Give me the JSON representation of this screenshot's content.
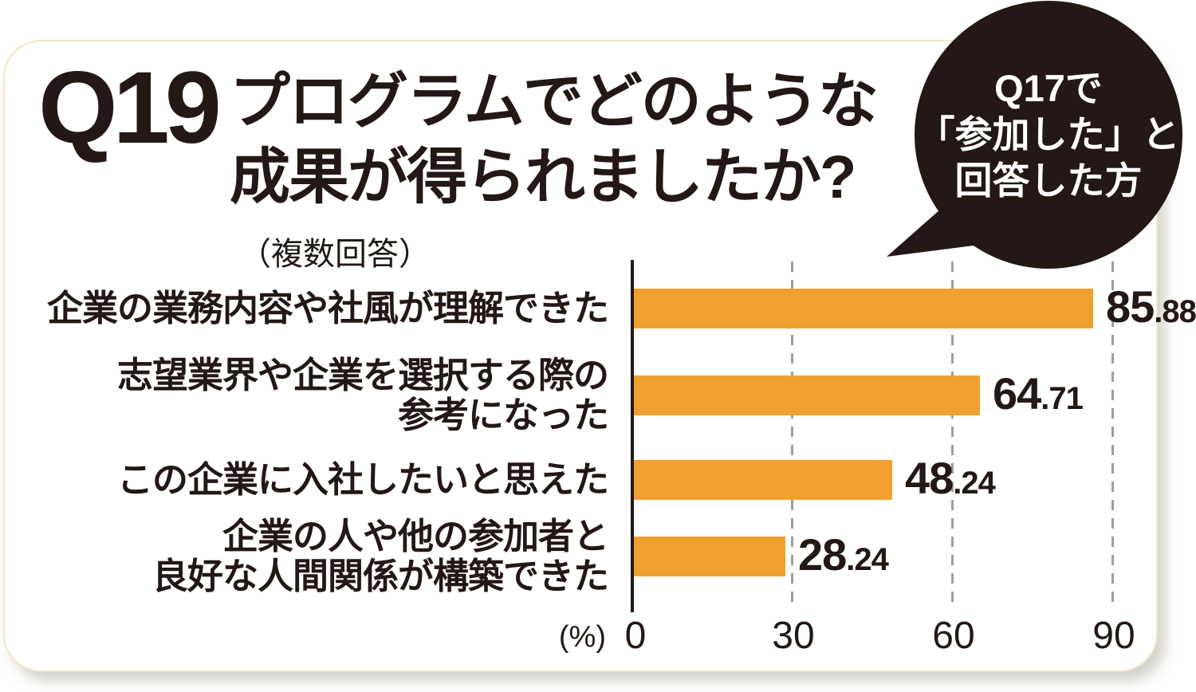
{
  "question": {
    "number": "Q19",
    "title_line1": "プログラムでどのような",
    "title_line2": "成果が得られましたか?",
    "note": "（複数回答）"
  },
  "bubble": {
    "line1": "Q17で",
    "line2": "「参加した」と",
    "line3": "回答した方",
    "background": "#231815",
    "text_color": "#ffffff"
  },
  "chart_data": {
    "type": "bar",
    "orientation": "horizontal",
    "title": "Q19 プログラムでどのような成果が得られましたか?（複数回答）",
    "annotation": "Q17で「参加した」と回答した方",
    "categories": [
      "企業の業務内容や社風が理解できた",
      "志望業界や企業を選択する際の参考になった",
      "この企業に入社したいと思えた",
      "企業の人や他の参加者と良好な人間関係が構築できた"
    ],
    "values": [
      85.88,
      64.71,
      48.24,
      28.24
    ],
    "xlabel": "(%)",
    "xlim": [
      0,
      90
    ],
    "ticks": [
      0,
      30,
      60,
      90
    ],
    "grid": "dashed-vertical-at-30-60-90",
    "legend": "none",
    "bar_color": "#f0a02f",
    "axis_color": "#231815",
    "gridline_color": "#9e9e9e"
  },
  "rows": [
    {
      "label_lines": [
        "企業の業務内容や社風が理解できた"
      ],
      "value": 85.88,
      "value_int": "85",
      "value_dec": ".88"
    },
    {
      "label_lines": [
        "志望業界や企業を選択する際の",
        "参考になった"
      ],
      "value": 64.71,
      "value_int": "64",
      "value_dec": ".71"
    },
    {
      "label_lines": [
        "この企業に入社したいと思えた"
      ],
      "value": 48.24,
      "value_int": "48",
      "value_dec": ".24"
    },
    {
      "label_lines": [
        "企業の人や他の参加者と",
        "良好な人間関係が構築できた"
      ],
      "value": 28.24,
      "value_int": "28",
      "value_dec": ".24"
    }
  ],
  "axis": {
    "percent_label": "(%)",
    "tick_labels": [
      "0",
      "30",
      "60",
      "90"
    ]
  },
  "colors": {
    "card_background": "#ffffff",
    "card_border": "#f5e6c5",
    "text": "#231815",
    "bar": "#f0a02f"
  }
}
